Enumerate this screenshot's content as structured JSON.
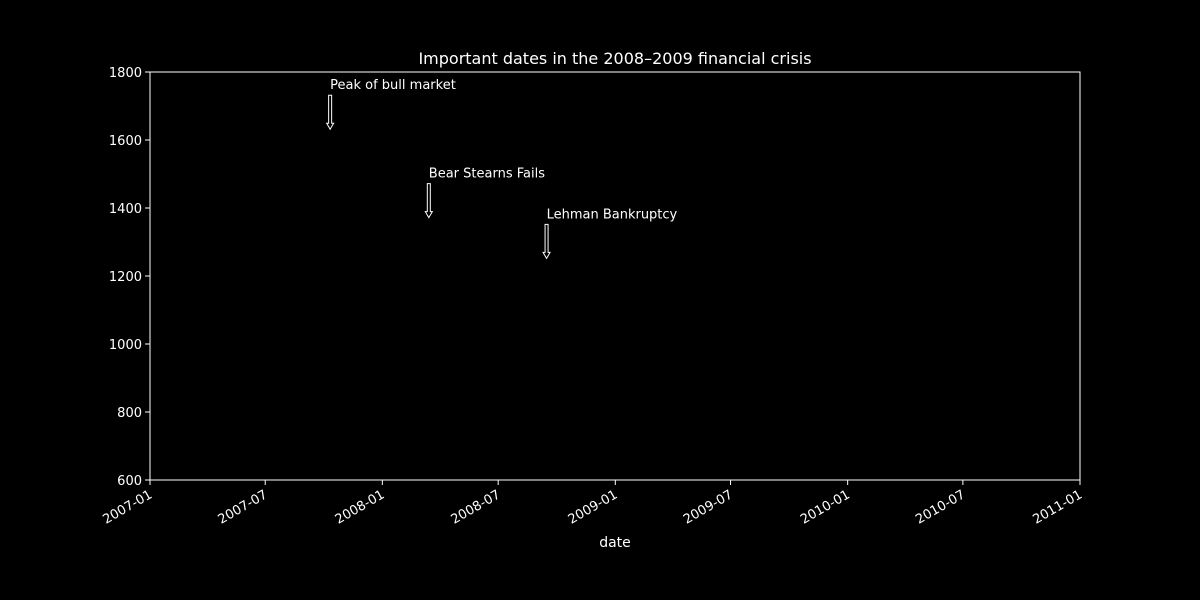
{
  "chart_data": {
    "type": "annotation",
    "title": "Important dates in the 2008–2009 financial crisis",
    "xlabel": "date",
    "ylabel": "",
    "xlim": [
      "2007-01-01",
      "2011-01-01"
    ],
    "ylim": [
      600,
      1800
    ],
    "x_ticks": [
      "2007-01",
      "2007-07",
      "2008-01",
      "2008-07",
      "2009-01",
      "2009-07",
      "2010-01",
      "2010-07",
      "2011-01"
    ],
    "y_ticks": [
      600,
      800,
      1000,
      1200,
      1400,
      1600,
      1800
    ],
    "grid": false,
    "annotations": [
      {
        "label": "Peak of bull market",
        "x": "2007-10-11",
        "y": 1620
      },
      {
        "label": "Bear Stearns Fails",
        "x": "2008-03-14",
        "y": 1360
      },
      {
        "label": "Lehman Bankruptcy",
        "x": "2008-09-15",
        "y": 1240
      }
    ],
    "colors": {
      "background": "#000000",
      "foreground": "#ffffff"
    }
  }
}
